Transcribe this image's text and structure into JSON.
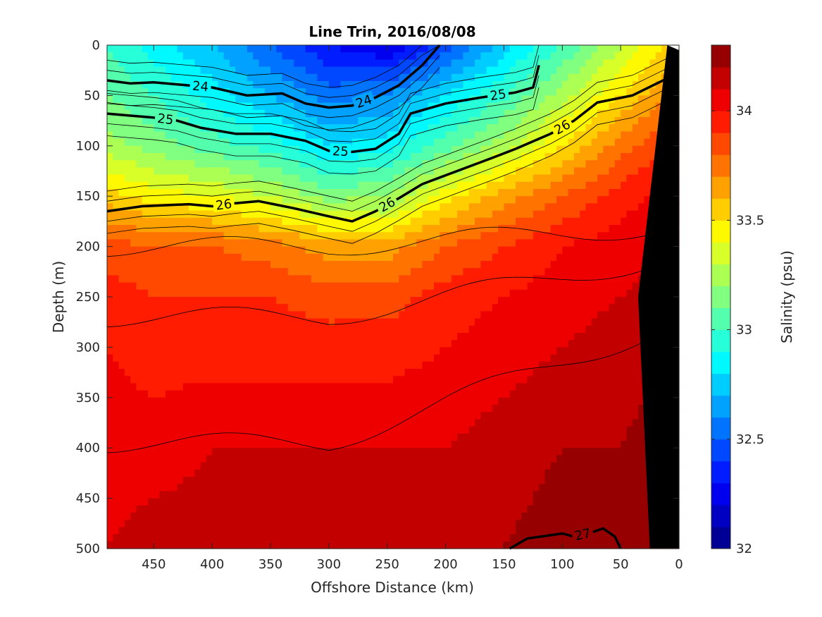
{
  "chart_data": {
    "type": "contourf",
    "title": "Line Trin, 2016/08/08",
    "xlabel": "Offshore Distance (km)",
    "ylabel": "Depth (m)",
    "xlim": [
      490,
      0
    ],
    "ylim": [
      0,
      500
    ],
    "x_reversed": true,
    "y_reversed": true,
    "xticks": [
      450,
      400,
      350,
      300,
      250,
      200,
      150,
      100,
      50,
      0
    ],
    "yticks": [
      0,
      50,
      100,
      150,
      200,
      250,
      300,
      350,
      400,
      450,
      500
    ],
    "grid": false,
    "colorbar": {
      "label": "Salinity (psu)",
      "min": 32,
      "max": 34.3,
      "step": 0.1,
      "ticks": [
        32,
        32.5,
        33,
        33.5,
        34
      ],
      "colormap": "jet"
    },
    "filled_field": {
      "variable": "salinity",
      "units": "psu",
      "x": [
        490,
        450,
        400,
        350,
        300,
        250,
        200,
        150,
        100,
        50,
        10
      ],
      "depth": [
        0,
        50,
        100,
        150,
        200,
        250,
        300,
        400,
        500
      ],
      "values": [
        [
          33.0,
          32.85,
          32.7,
          32.5,
          32.3,
          32.2,
          32.45,
          32.75,
          33.0,
          33.3,
          33.5
        ],
        [
          33.1,
          33.0,
          32.85,
          32.7,
          32.55,
          32.6,
          32.8,
          33.0,
          33.25,
          33.5,
          33.7
        ],
        [
          33.25,
          33.15,
          33.05,
          32.95,
          32.8,
          32.85,
          33.05,
          33.25,
          33.5,
          33.75,
          33.9
        ],
        [
          33.55,
          33.45,
          33.4,
          33.3,
          33.15,
          33.2,
          33.45,
          33.65,
          33.8,
          33.95,
          34.05
        ],
        [
          33.85,
          33.8,
          33.8,
          33.75,
          33.65,
          33.65,
          33.8,
          33.9,
          34.0,
          34.05,
          34.1
        ],
        [
          33.95,
          33.9,
          33.9,
          33.9,
          33.85,
          33.85,
          33.95,
          34.0,
          34.05,
          34.1,
          34.15
        ],
        [
          34.0,
          33.95,
          33.95,
          33.95,
          33.95,
          33.95,
          34.0,
          34.05,
          34.1,
          34.15,
          34.2
        ],
        [
          34.05,
          34.05,
          34.1,
          34.1,
          34.1,
          34.1,
          34.1,
          34.15,
          34.2,
          34.2,
          34.25
        ],
        [
          34.1,
          34.15,
          34.15,
          34.15,
          34.15,
          34.15,
          34.15,
          34.2,
          34.25,
          34.25,
          34.25
        ]
      ]
    },
    "density_contours": [
      {
        "level": 24,
        "labels": [
          "24",
          "24"
        ],
        "points": [
          [
            490,
            35
          ],
          [
            470,
            38
          ],
          [
            450,
            37
          ],
          [
            420,
            40
          ],
          [
            400,
            42
          ],
          [
            370,
            50
          ],
          [
            340,
            48
          ],
          [
            320,
            58
          ],
          [
            300,
            62
          ],
          [
            280,
            60
          ],
          [
            260,
            52
          ],
          [
            240,
            40
          ],
          [
            220,
            20
          ],
          [
            205,
            0
          ]
        ]
      },
      {
        "level": 25,
        "labels": [
          "25",
          "25",
          "25"
        ],
        "points": [
          [
            490,
            68
          ],
          [
            470,
            70
          ],
          [
            450,
            72
          ],
          [
            430,
            75
          ],
          [
            410,
            82
          ],
          [
            380,
            88
          ],
          [
            350,
            88
          ],
          [
            320,
            95
          ],
          [
            300,
            105
          ],
          [
            280,
            106
          ],
          [
            260,
            103
          ],
          [
            240,
            88
          ],
          [
            230,
            68
          ],
          [
            200,
            58
          ],
          [
            170,
            52
          ],
          [
            140,
            47
          ],
          [
            125,
            42
          ],
          [
            120,
            20
          ]
        ]
      },
      {
        "level": 26,
        "labels": [
          "26",
          "26",
          "26"
        ],
        "points": [
          [
            490,
            165
          ],
          [
            460,
            160
          ],
          [
            420,
            158
          ],
          [
            400,
            160
          ],
          [
            380,
            157
          ],
          [
            360,
            155
          ],
          [
            330,
            162
          ],
          [
            300,
            170
          ],
          [
            280,
            175
          ],
          [
            260,
            165
          ],
          [
            240,
            152
          ],
          [
            220,
            138
          ],
          [
            190,
            125
          ],
          [
            160,
            112
          ],
          [
            140,
            103
          ],
          [
            110,
            88
          ],
          [
            90,
            75
          ],
          [
            70,
            57
          ],
          [
            40,
            50
          ],
          [
            10,
            33
          ]
        ]
      },
      {
        "level": 27,
        "labels": [
          "27"
        ],
        "points": [
          [
            145,
            500
          ],
          [
            130,
            490
          ],
          [
            100,
            485
          ],
          [
            90,
            488
          ],
          [
            75,
            484
          ],
          [
            65,
            480
          ],
          [
            55,
            488
          ],
          [
            50,
            500
          ]
        ]
      }
    ],
    "bathymetry": {
      "fill": "#000000",
      "points": [
        [
          0,
          0
        ],
        [
          0,
          500
        ],
        [
          25,
          500
        ],
        [
          35,
          250
        ],
        [
          10,
          0
        ]
      ]
    }
  }
}
